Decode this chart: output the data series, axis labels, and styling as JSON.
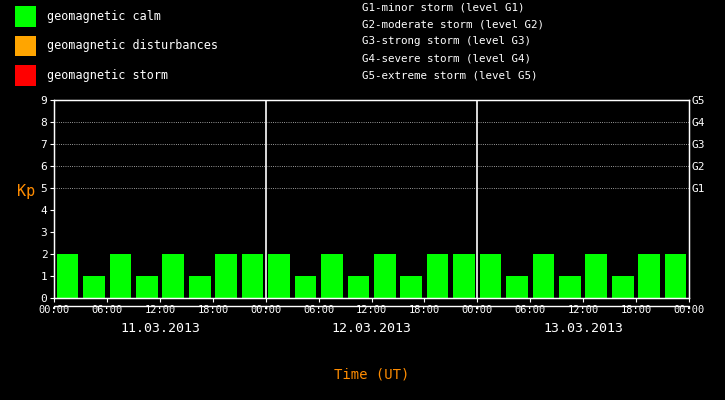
{
  "background_color": "#000000",
  "plot_bg_color": "#000000",
  "bar_color_calm": "#00ff00",
  "bar_color_disturb": "#ffa500",
  "bar_color_storm": "#ff0000",
  "text_color": "#ffffff",
  "ylabel_color": "#ff8c00",
  "xlabel_color": "#ff8c00",
  "ylim": [
    0,
    9
  ],
  "yticks": [
    0,
    1,
    2,
    3,
    4,
    5,
    6,
    7,
    8,
    9
  ],
  "g_labels": [
    "G5",
    "G4",
    "G3",
    "G2",
    "G1"
  ],
  "g_levels": [
    9,
    8,
    7,
    6,
    5
  ],
  "days": [
    "11.03.2013",
    "12.03.2013",
    "13.03.2013"
  ],
  "kp_day1": [
    2,
    1,
    2,
    1,
    2,
    1,
    2,
    2
  ],
  "kp_day2": [
    2,
    1,
    2,
    1,
    2,
    1,
    2,
    2
  ],
  "kp_day3": [
    2,
    1,
    2,
    1,
    2,
    1,
    2,
    2
  ],
  "legend_items": [
    {
      "label": "geomagnetic calm",
      "color": "#00ff00"
    },
    {
      "label": "geomagnetic disturbances",
      "color": "#ffa500"
    },
    {
      "label": "geomagnetic storm",
      "color": "#ff0000"
    }
  ],
  "legend_storm_lines": [
    "G1-minor storm (level G1)",
    "G2-moderate storm (level G2)",
    "G3-strong storm (level G3)",
    "G4-severe storm (level G4)",
    "G5-extreme storm (level G5)"
  ],
  "xlabel": "Time (UT)",
  "ylabel": "Kp",
  "separator_color": "#ffffff",
  "axis_color": "#ffffff",
  "time_labels": [
    "00:00",
    "06:00",
    "12:00",
    "18:00"
  ]
}
